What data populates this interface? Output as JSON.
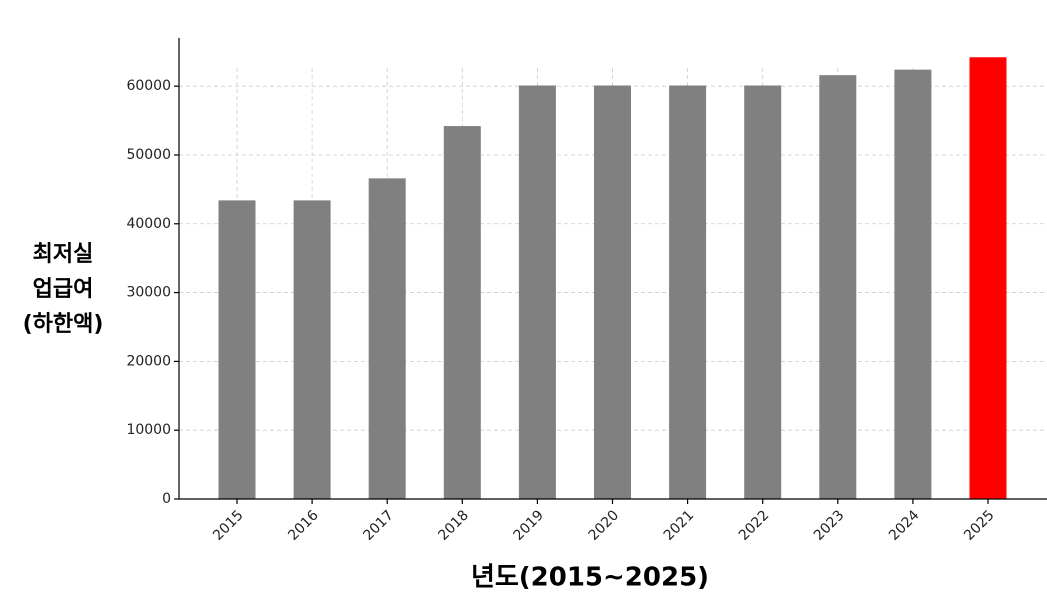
{
  "chart_data": {
    "type": "bar",
    "xlabel": "년도(2015~2025)",
    "ylabel": [
      "최저실",
      "업급여",
      "(하한액)"
    ],
    "categories": [
      "2015",
      "2016",
      "2017",
      "2018",
      "2019",
      "2020",
      "2021",
      "2022",
      "2023",
      "2024",
      "2025"
    ],
    "values": [
      43400,
      43400,
      46600,
      54200,
      60100,
      60100,
      60100,
      60100,
      61600,
      62400,
      64200
    ],
    "colors": [
      "#808080",
      "#808080",
      "#808080",
      "#808080",
      "#808080",
      "#808080",
      "#808080",
      "#808080",
      "#808080",
      "#808080",
      "#ff0000"
    ],
    "ylim": [
      0,
      67000
    ],
    "yticks": [
      0,
      10000,
      20000,
      30000,
      40000,
      50000,
      60000
    ],
    "grid": true
  }
}
